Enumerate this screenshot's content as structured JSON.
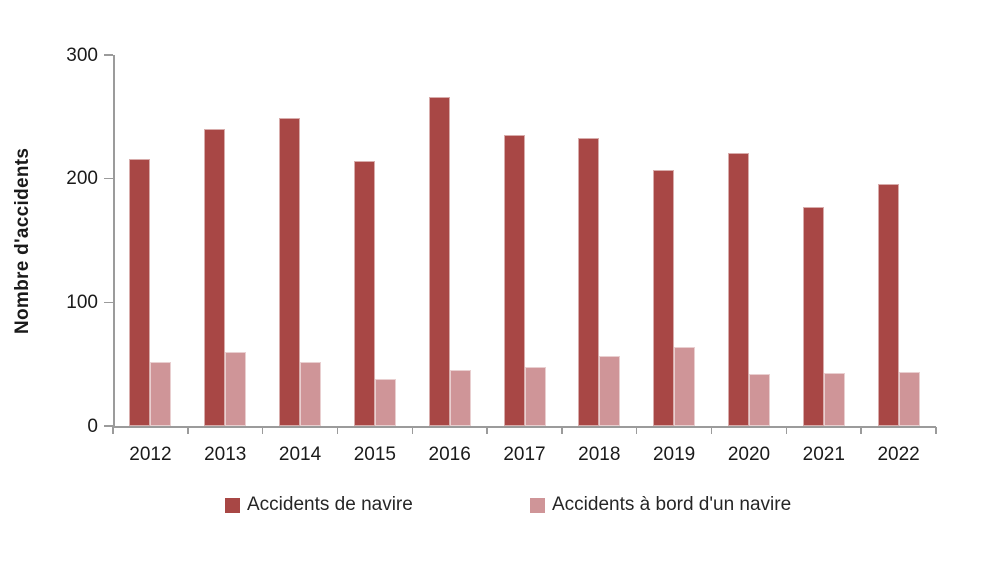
{
  "chart_data": {
    "type": "bar",
    "title": "",
    "xlabel": "",
    "ylabel": "Nombre d'accidents",
    "ylim": [
      0,
      300
    ],
    "yticks": [
      "0",
      "100",
      "200",
      "300"
    ],
    "grid": false,
    "legend_position": "bottom",
    "categories": [
      "2012",
      "2013",
      "2014",
      "2015",
      "2016",
      "2017",
      "2018",
      "2019",
      "2020",
      "2021",
      "2022"
    ],
    "series": [
      {
        "name": "Accidents de navire",
        "color": "#a84745",
        "values": [
          216,
          240,
          249,
          214,
          266,
          235,
          233,
          207,
          221,
          177,
          196
        ]
      },
      {
        "name": "Accidents à bord d'un navire",
        "color": "#cf9598",
        "values": [
          52,
          60,
          52,
          38,
          45,
          48,
          57,
          64,
          42,
          43,
          44
        ]
      }
    ]
  }
}
